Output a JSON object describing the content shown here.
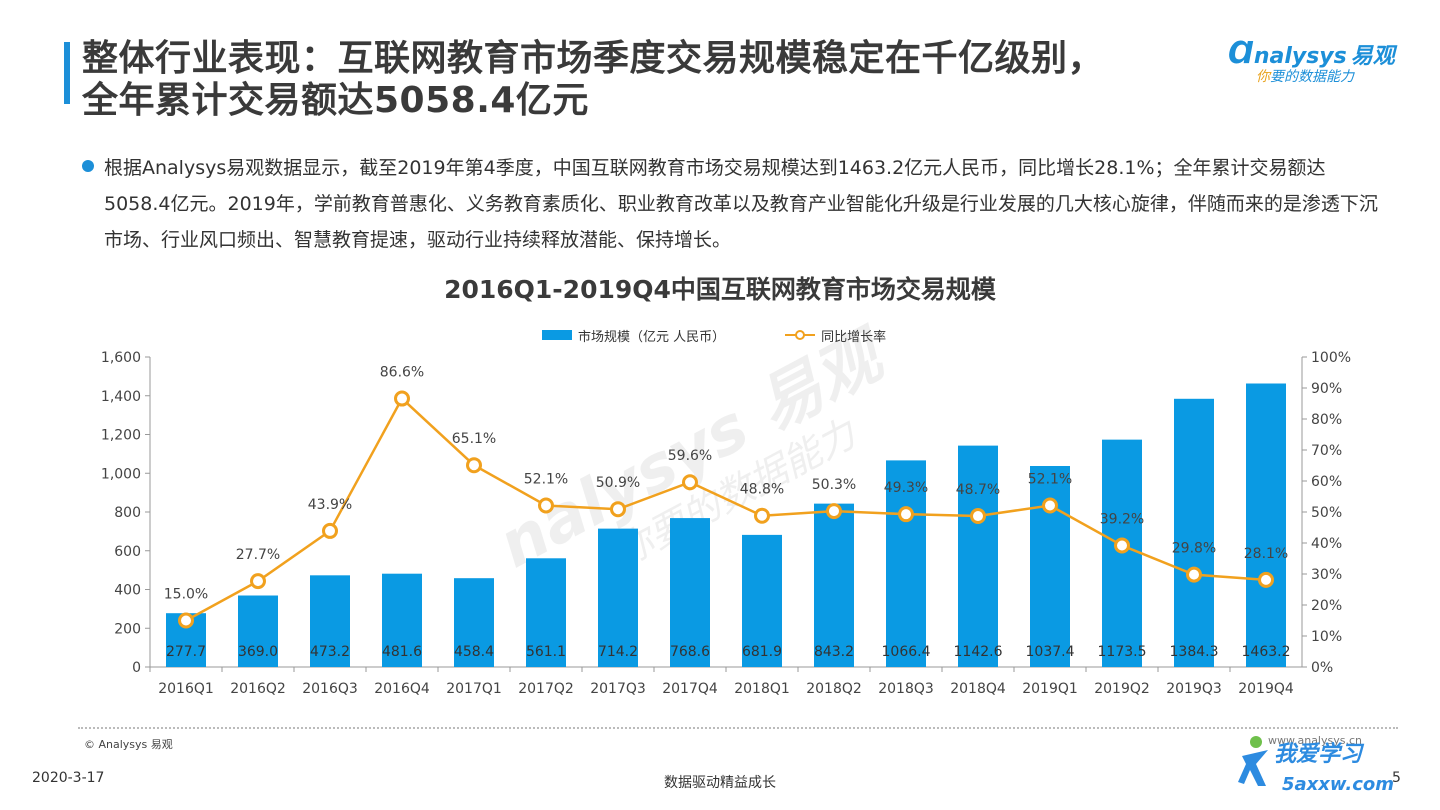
{
  "header": {
    "title_line1": "整体行业表现：互联网教育市场季度交易规模稳定在千亿级别，",
    "title_line2": "全年累计交易额达5058.4亿元"
  },
  "logo": {
    "brand": "nalysys",
    "brand_cn": "易观",
    "tagline_prefix": "你",
    "tagline": "要的数据能力"
  },
  "summary": "根据Analysys易观数据显示，截至2019年第4季度，中国互联网教育市场交易规模达到1463.2亿元人民币，同比增长28.1%；全年累计交易额达5058.4亿元。2019年，学前教育普惠化、义务教育素质化、职业教育改革以及教育产业智能化升级是行业发展的几大核心旋律，伴随而来的是渗透下沉市场、行业风口频出、智慧教育提速，驱动行业持续释放潜能、保持增长。",
  "chart_data": {
    "type": "bar",
    "title": "2016Q1-2019Q4中国互联网教育市场交易规模",
    "categories": [
      "2016Q1",
      "2016Q2",
      "2016Q3",
      "2016Q4",
      "2017Q1",
      "2017Q2",
      "2017Q3",
      "2017Q4",
      "2018Q1",
      "2018Q2",
      "2018Q3",
      "2018Q4",
      "2019Q1",
      "2019Q2",
      "2019Q3",
      "2019Q4"
    ],
    "series": [
      {
        "name": "市场规模（亿元 人民币）",
        "type": "bar",
        "axis": "left",
        "color": "#0A9AE3",
        "values": [
          277.7,
          369.0,
          473.2,
          481.6,
          458.4,
          561.1,
          714.2,
          768.6,
          681.9,
          843.2,
          1066.4,
          1142.6,
          1037.4,
          1173.5,
          1384.3,
          1463.2
        ],
        "labels": [
          "277.7",
          "369.0",
          "473.2",
          "481.6",
          "458.4",
          "561.1",
          "714.2",
          "768.6",
          "681.9",
          "843.2",
          "1066.4",
          "1142.6",
          "1037.4",
          "1173.5",
          "1384.3",
          "1463.2"
        ]
      },
      {
        "name": "同比增长率",
        "type": "line",
        "axis": "right",
        "color": "#F1A11E",
        "values": [
          15.0,
          27.7,
          43.9,
          86.6,
          65.1,
          52.1,
          50.9,
          59.6,
          48.8,
          50.3,
          49.3,
          48.7,
          52.1,
          39.2,
          29.8,
          28.1
        ],
        "labels": [
          "15.0%",
          "27.7%",
          "43.9%",
          "86.6%",
          "65.1%",
          "52.1%",
          "50.9%",
          "59.6%",
          "48.8%",
          "50.3%",
          "49.3%",
          "48.7%",
          "52.1%",
          "39.2%",
          "29.8%",
          "28.1%"
        ]
      }
    ],
    "y_left": {
      "min": 0,
      "max": 1600,
      "ticks": [
        "0",
        "200",
        "400",
        "600",
        "800",
        "1,000",
        "1,200",
        "1,400",
        "1,600"
      ]
    },
    "y_right": {
      "min": 0,
      "max": 100,
      "ticks": [
        "0%",
        "10%",
        "20%",
        "30%",
        "40%",
        "50%",
        "60%",
        "70%",
        "80%",
        "90%",
        "100%"
      ]
    },
    "legend": "top-center",
    "grid": false
  },
  "watermark": {
    "text": "nalysys 易观",
    "subtext": "你要的数据能力"
  },
  "footer": {
    "copyright": "© Analysys 易观",
    "date": "2020-3-17",
    "center": "数据驱动精益成长",
    "site": "www.analysys.cn",
    "page": "5"
  },
  "stamp": {
    "line1": "我爱学习",
    "line2": "5axxw.com"
  }
}
